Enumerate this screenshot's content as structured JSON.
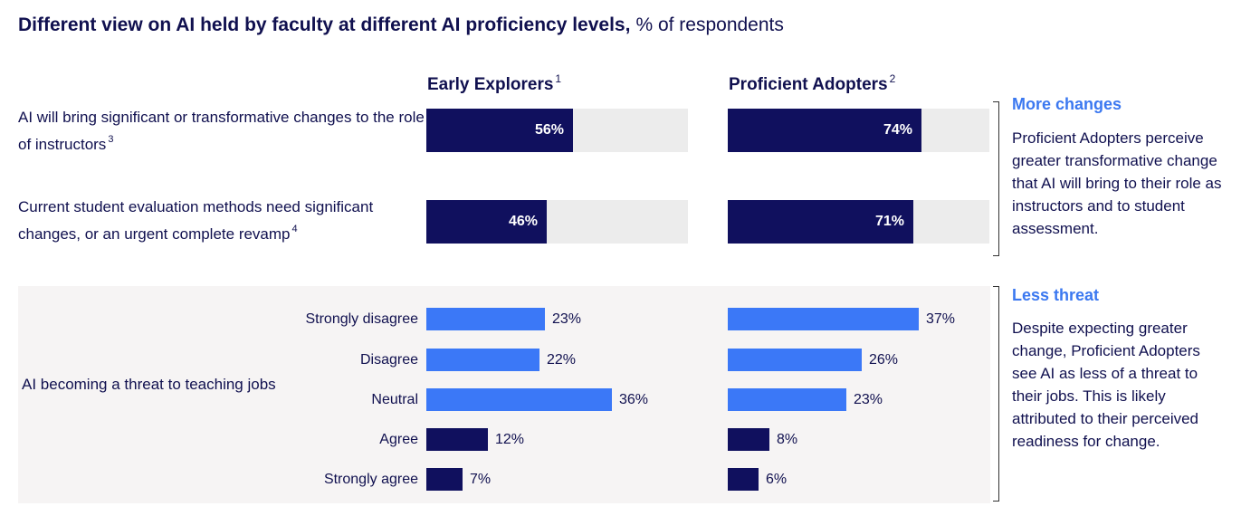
{
  "title": {
    "bold": "Different view on AI held by faculty at different AI proficiency levels,",
    "unit": "% of respondents"
  },
  "columns": [
    {
      "label": "Early Explorers",
      "note": "1"
    },
    {
      "label": "Proficient Adopters",
      "note": "2"
    }
  ],
  "questions": [
    {
      "label": "AI will bring significant or transformative changes to the role of instructors",
      "note": "3",
      "values": [
        56,
        74
      ],
      "value_labels": [
        "56%",
        "74%"
      ]
    },
    {
      "label": "Current student evaluation methods need significant changes, or an urgent complete revamp",
      "note": "4",
      "values": [
        46,
        71
      ],
      "value_labels": [
        "46%",
        "71%"
      ]
    }
  ],
  "threat": {
    "label": "AI becoming a threat to teaching jobs",
    "categories": [
      "Strongly disagree",
      "Disagree",
      "Neutral",
      "Agree",
      "Strongly agree"
    ],
    "series": [
      {
        "name": "Early Explorers",
        "values": [
          23,
          22,
          36,
          12,
          7
        ],
        "value_labels": [
          "23%",
          "22%",
          "36%",
          "12%",
          "7%"
        ]
      },
      {
        "name": "Proficient Adopters",
        "values": [
          37,
          26,
          23,
          8,
          6
        ],
        "value_labels": [
          "37%",
          "26%",
          "23%",
          "8%",
          "6%"
        ]
      }
    ],
    "colors": [
      "#3b78f7",
      "#3b78f7",
      "#3b78f7",
      "#10105e",
      "#10105e"
    ]
  },
  "notes": [
    {
      "heading": "More changes",
      "body": "Proficient Adopters perceive greater transformative change that AI will bring to their role as instructors and to student assessment."
    },
    {
      "heading": "Less threat",
      "body": "Despite expecting greater change, Proficient Adopters see AI as less of a threat to their jobs. This is likely attributed to their perceived readiness for change."
    }
  ],
  "colors": {
    "dark": "#10105e",
    "accent": "#3b78f7",
    "track": "#ececec",
    "panel": "#f6f4f4"
  },
  "chart_data": [
    {
      "type": "bar",
      "categories": [
        "AI will bring significant or transformative changes to the role of instructors",
        "Current student evaluation methods need significant changes, or an urgent complete revamp"
      ],
      "series": [
        {
          "name": "Early Explorers",
          "values": [
            56,
            46
          ]
        },
        {
          "name": "Proficient Adopters",
          "values": [
            74,
            71
          ]
        }
      ],
      "ylim": [
        0,
        100
      ]
    },
    {
      "type": "bar",
      "title": "AI becoming a threat to teaching jobs",
      "categories": [
        "Strongly disagree",
        "Disagree",
        "Neutral",
        "Agree",
        "Strongly agree"
      ],
      "series": [
        {
          "name": "Early Explorers",
          "values": [
            23,
            22,
            36,
            12,
            7
          ]
        },
        {
          "name": "Proficient Adopters",
          "values": [
            37,
            26,
            23,
            8,
            6
          ]
        }
      ]
    }
  ]
}
